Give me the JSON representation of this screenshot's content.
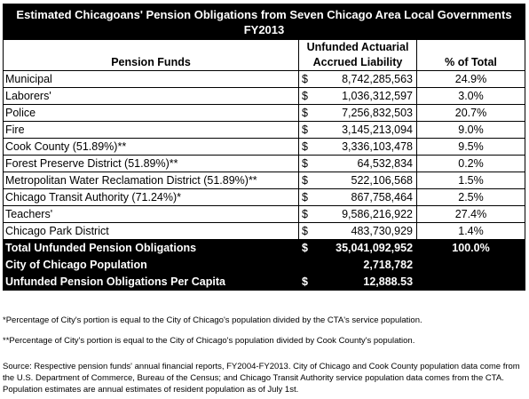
{
  "title_line1": "Estimated  Chicagoans' Pension Obligations from Seven Chicago Area Local Governments",
  "title_line2": "FY2013",
  "headers": {
    "funds": "Pension Funds",
    "liability_line1": "Unfunded Actuarial",
    "liability_line2": "Accrued Liability",
    "pct": "% of Total"
  },
  "rows": [
    {
      "name": "Municipal",
      "dollar": "$",
      "amount": "8,742,285,563",
      "pct": "24.9%"
    },
    {
      "name": "Laborers'",
      "dollar": "$",
      "amount": "1,036,312,597",
      "pct": "3.0%"
    },
    {
      "name": "Police",
      "dollar": "$",
      "amount": "7,256,832,503",
      "pct": "20.7%"
    },
    {
      "name": "Fire",
      "dollar": "$",
      "amount": "3,145,213,094",
      "pct": "9.0%"
    },
    {
      "name": "Cook County (51.89%)**",
      "dollar": "$",
      "amount": "3,336,103,478",
      "pct": "9.5%"
    },
    {
      "name": "Forest Preserve District (51.89%)**",
      "dollar": "$",
      "amount": "64,532,834",
      "pct": "0.2%"
    },
    {
      "name": "Metropolitan Water Reclamation District (51.89%)**",
      "dollar": "$",
      "amount": "522,106,568",
      "pct": "1.5%"
    },
    {
      "name": "Chicago Transit Authority (71.24%)*",
      "dollar": "$",
      "amount": "867,758,464",
      "pct": "2.5%"
    },
    {
      "name": "Teachers'",
      "dollar": "$",
      "amount": "9,586,216,922",
      "pct": "27.4%"
    },
    {
      "name": "Chicago Park District",
      "dollar": "$",
      "amount": "483,730,929",
      "pct": "1.4%"
    }
  ],
  "totals": {
    "total_label": "Total Unfunded Pension Obligations",
    "total_dollar": "$",
    "total_amount": "35,041,092,952",
    "total_pct": "100.0%",
    "pop_label": "City of Chicago Population",
    "pop_value": "2,718,782",
    "percap_label": "Unfunded Pension Obligations Per Capita",
    "percap_dollar": "$",
    "percap_value": "12,888.53"
  },
  "notes": {
    "note1": "*Percentage of City's portion is equal to the City of Chicago's population divided by the CTA's service population.",
    "note2": "**Percentage of City's portion is equal to the City of Chicago's population divided by Cook County's population.",
    "source": "Source:  Respective pension funds' annual financial reports, FY2004-FY2013. City of Chicago and Cook County population data come from the U.S. Department of Commerce, Bureau of the Census; and Chicago Transit Authority service population data comes from the CTA. Population estimates are annual estimates of resident population as of July 1st."
  }
}
